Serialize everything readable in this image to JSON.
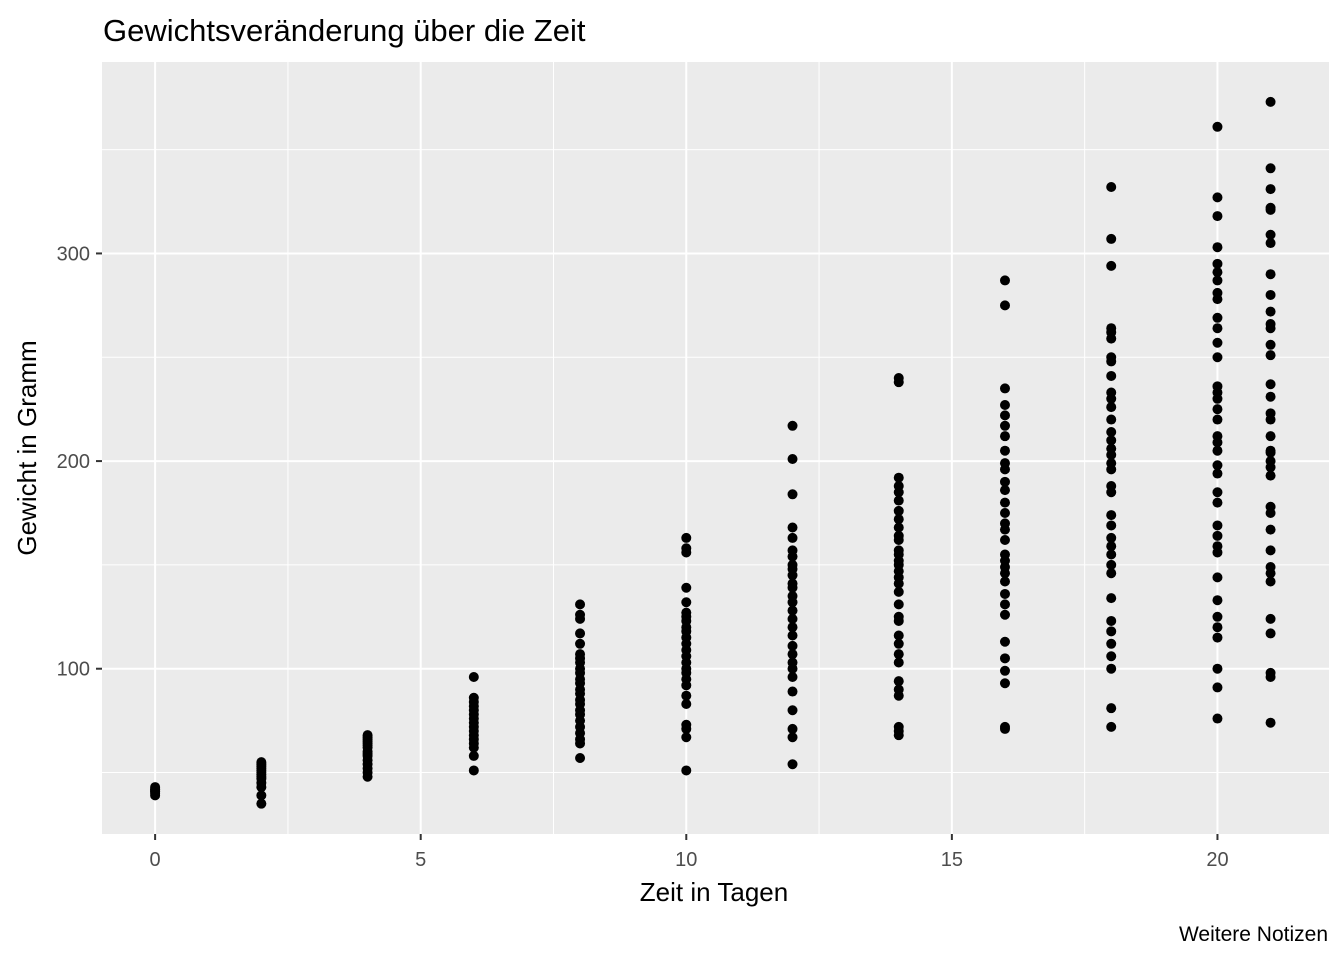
{
  "chart_data": {
    "type": "scatter",
    "title": "Gewichtsveränderung über die Zeit",
    "caption": "Weitere Notizen",
    "xlabel": "Zeit in Tagen",
    "ylabel": "Gewicht in Gramm",
    "xlim": [
      -1.0,
      22.1
    ],
    "ylim": [
      20.4,
      392.2
    ],
    "x_ticks": [
      0,
      5,
      10,
      15,
      20
    ],
    "x_tick_labels": [
      "0",
      "5",
      "10",
      "15",
      "20"
    ],
    "y_ticks": [
      100,
      200,
      300
    ],
    "y_tick_labels": [
      "100",
      "200",
      "300"
    ],
    "grid": true,
    "legend": "none",
    "series": [
      {
        "points": [
          [
            0,
            39
          ],
          [
            0,
            40
          ],
          [
            0,
            41
          ],
          [
            0,
            41
          ],
          [
            0,
            42
          ],
          [
            0,
            42
          ],
          [
            0,
            43
          ],
          [
            2,
            35
          ],
          [
            2,
            39
          ],
          [
            2,
            43
          ],
          [
            2,
            45
          ],
          [
            2,
            47
          ],
          [
            2,
            48
          ],
          [
            2,
            49
          ],
          [
            2,
            50
          ],
          [
            2,
            51
          ],
          [
            2,
            52
          ],
          [
            2,
            53
          ],
          [
            2,
            54
          ],
          [
            2,
            55
          ],
          [
            4,
            48
          ],
          [
            4,
            50
          ],
          [
            4,
            52
          ],
          [
            4,
            54
          ],
          [
            4,
            56
          ],
          [
            4,
            58
          ],
          [
            4,
            59
          ],
          [
            4,
            60
          ],
          [
            4,
            62
          ],
          [
            4,
            63
          ],
          [
            4,
            64
          ],
          [
            4,
            65
          ],
          [
            4,
            66
          ],
          [
            4,
            67
          ],
          [
            4,
            68
          ],
          [
            6,
            51
          ],
          [
            6,
            58
          ],
          [
            6,
            62
          ],
          [
            6,
            64
          ],
          [
            6,
            66
          ],
          [
            6,
            68
          ],
          [
            6,
            70
          ],
          [
            6,
            72
          ],
          [
            6,
            74
          ],
          [
            6,
            76
          ],
          [
            6,
            78
          ],
          [
            6,
            80
          ],
          [
            6,
            82
          ],
          [
            6,
            84
          ],
          [
            6,
            86
          ],
          [
            6,
            96
          ],
          [
            8,
            57
          ],
          [
            8,
            64
          ],
          [
            8,
            66
          ],
          [
            8,
            69
          ],
          [
            8,
            72
          ],
          [
            8,
            75
          ],
          [
            8,
            78
          ],
          [
            8,
            80
          ],
          [
            8,
            83
          ],
          [
            8,
            85
          ],
          [
            8,
            88
          ],
          [
            8,
            90
          ],
          [
            8,
            93
          ],
          [
            8,
            95
          ],
          [
            8,
            98
          ],
          [
            8,
            100
          ],
          [
            8,
            103
          ],
          [
            8,
            105
          ],
          [
            8,
            107
          ],
          [
            8,
            112
          ],
          [
            8,
            117
          ],
          [
            8,
            124
          ],
          [
            8,
            126
          ],
          [
            8,
            131
          ],
          [
            10,
            51
          ],
          [
            10,
            67
          ],
          [
            10,
            71
          ],
          [
            10,
            73
          ],
          [
            10,
            83
          ],
          [
            10,
            87
          ],
          [
            10,
            92
          ],
          [
            10,
            95
          ],
          [
            10,
            98
          ],
          [
            10,
            100
          ],
          [
            10,
            103
          ],
          [
            10,
            106
          ],
          [
            10,
            109
          ],
          [
            10,
            112
          ],
          [
            10,
            115
          ],
          [
            10,
            118
          ],
          [
            10,
            120
          ],
          [
            10,
            123
          ],
          [
            10,
            125
          ],
          [
            10,
            127
          ],
          [
            10,
            132
          ],
          [
            10,
            139
          ],
          [
            10,
            156
          ],
          [
            10,
            158
          ],
          [
            10,
            163
          ],
          [
            12,
            54
          ],
          [
            12,
            67
          ],
          [
            12,
            71
          ],
          [
            12,
            80
          ],
          [
            12,
            89
          ],
          [
            12,
            96
          ],
          [
            12,
            100
          ],
          [
            12,
            103
          ],
          [
            12,
            107
          ],
          [
            12,
            111
          ],
          [
            12,
            116
          ],
          [
            12,
            120
          ],
          [
            12,
            124
          ],
          [
            12,
            128
          ],
          [
            12,
            132
          ],
          [
            12,
            135
          ],
          [
            12,
            139
          ],
          [
            12,
            141
          ],
          [
            12,
            145
          ],
          [
            12,
            148
          ],
          [
            12,
            150
          ],
          [
            12,
            154
          ],
          [
            12,
            157
          ],
          [
            12,
            163
          ],
          [
            12,
            168
          ],
          [
            12,
            184
          ],
          [
            12,
            201
          ],
          [
            12,
            217
          ],
          [
            14,
            68
          ],
          [
            14,
            70
          ],
          [
            14,
            72
          ],
          [
            14,
            87
          ],
          [
            14,
            90
          ],
          [
            14,
            94
          ],
          [
            14,
            103
          ],
          [
            14,
            107
          ],
          [
            14,
            112
          ],
          [
            14,
            116
          ],
          [
            14,
            123
          ],
          [
            14,
            125
          ],
          [
            14,
            131
          ],
          [
            14,
            137
          ],
          [
            14,
            141
          ],
          [
            14,
            144
          ],
          [
            14,
            147
          ],
          [
            14,
            150
          ],
          [
            14,
            152
          ],
          [
            14,
            155
          ],
          [
            14,
            157
          ],
          [
            14,
            162
          ],
          [
            14,
            164
          ],
          [
            14,
            168
          ],
          [
            14,
            172
          ],
          [
            14,
            176
          ],
          [
            14,
            181
          ],
          [
            14,
            185
          ],
          [
            14,
            188
          ],
          [
            14,
            192
          ],
          [
            14,
            238
          ],
          [
            14,
            240
          ],
          [
            16,
            71
          ],
          [
            16,
            72
          ],
          [
            16,
            93
          ],
          [
            16,
            99
          ],
          [
            16,
            105
          ],
          [
            16,
            113
          ],
          [
            16,
            126
          ],
          [
            16,
            131
          ],
          [
            16,
            136
          ],
          [
            16,
            142
          ],
          [
            16,
            146
          ],
          [
            16,
            149
          ],
          [
            16,
            152
          ],
          [
            16,
            155
          ],
          [
            16,
            162
          ],
          [
            16,
            167
          ],
          [
            16,
            170
          ],
          [
            16,
            175
          ],
          [
            16,
            180
          ],
          [
            16,
            186
          ],
          [
            16,
            190
          ],
          [
            16,
            196
          ],
          [
            16,
            199
          ],
          [
            16,
            205
          ],
          [
            16,
            212
          ],
          [
            16,
            217
          ],
          [
            16,
            222
          ],
          [
            16,
            227
          ],
          [
            16,
            235
          ],
          [
            16,
            275
          ],
          [
            16,
            287
          ],
          [
            18,
            72
          ],
          [
            18,
            81
          ],
          [
            18,
            100
          ],
          [
            18,
            106
          ],
          [
            18,
            112
          ],
          [
            18,
            118
          ],
          [
            18,
            123
          ],
          [
            18,
            134
          ],
          [
            18,
            146
          ],
          [
            18,
            150
          ],
          [
            18,
            155
          ],
          [
            18,
            159
          ],
          [
            18,
            163
          ],
          [
            18,
            169
          ],
          [
            18,
            174
          ],
          [
            18,
            185
          ],
          [
            18,
            188
          ],
          [
            18,
            196
          ],
          [
            18,
            199
          ],
          [
            18,
            203
          ],
          [
            18,
            206
          ],
          [
            18,
            210
          ],
          [
            18,
            214
          ],
          [
            18,
            220
          ],
          [
            18,
            226
          ],
          [
            18,
            230
          ],
          [
            18,
            233
          ],
          [
            18,
            241
          ],
          [
            18,
            248
          ],
          [
            18,
            250
          ],
          [
            18,
            259
          ],
          [
            18,
            262
          ],
          [
            18,
            264
          ],
          [
            18,
            294
          ],
          [
            18,
            307
          ],
          [
            18,
            332
          ],
          [
            20,
            76
          ],
          [
            20,
            91
          ],
          [
            20,
            100
          ],
          [
            20,
            115
          ],
          [
            20,
            120
          ],
          [
            20,
            125
          ],
          [
            20,
            133
          ],
          [
            20,
            144
          ],
          [
            20,
            156
          ],
          [
            20,
            159
          ],
          [
            20,
            164
          ],
          [
            20,
            169
          ],
          [
            20,
            180
          ],
          [
            20,
            185
          ],
          [
            20,
            194
          ],
          [
            20,
            198
          ],
          [
            20,
            205
          ],
          [
            20,
            209
          ],
          [
            20,
            212
          ],
          [
            20,
            220
          ],
          [
            20,
            225
          ],
          [
            20,
            230
          ],
          [
            20,
            233
          ],
          [
            20,
            236
          ],
          [
            20,
            250
          ],
          [
            20,
            257
          ],
          [
            20,
            264
          ],
          [
            20,
            269
          ],
          [
            20,
            278
          ],
          [
            20,
            281
          ],
          [
            20,
            287
          ],
          [
            20,
            291
          ],
          [
            20,
            295
          ],
          [
            20,
            303
          ],
          [
            20,
            318
          ],
          [
            20,
            327
          ],
          [
            20,
            361
          ],
          [
            21,
            74
          ],
          [
            21,
            96
          ],
          [
            21,
            98
          ],
          [
            21,
            117
          ],
          [
            21,
            124
          ],
          [
            21,
            142
          ],
          [
            21,
            146
          ],
          [
            21,
            149
          ],
          [
            21,
            157
          ],
          [
            21,
            167
          ],
          [
            21,
            175
          ],
          [
            21,
            178
          ],
          [
            21,
            193
          ],
          [
            21,
            197
          ],
          [
            21,
            200
          ],
          [
            21,
            204
          ],
          [
            21,
            205
          ],
          [
            21,
            212
          ],
          [
            21,
            220
          ],
          [
            21,
            223
          ],
          [
            21,
            231
          ],
          [
            21,
            237
          ],
          [
            21,
            251
          ],
          [
            21,
            256
          ],
          [
            21,
            264
          ],
          [
            21,
            266
          ],
          [
            21,
            272
          ],
          [
            21,
            280
          ],
          [
            21,
            290
          ],
          [
            21,
            305
          ],
          [
            21,
            309
          ],
          [
            21,
            321
          ],
          [
            21,
            322
          ],
          [
            21,
            331
          ],
          [
            21,
            341
          ],
          [
            21,
            373
          ]
        ]
      }
    ]
  }
}
